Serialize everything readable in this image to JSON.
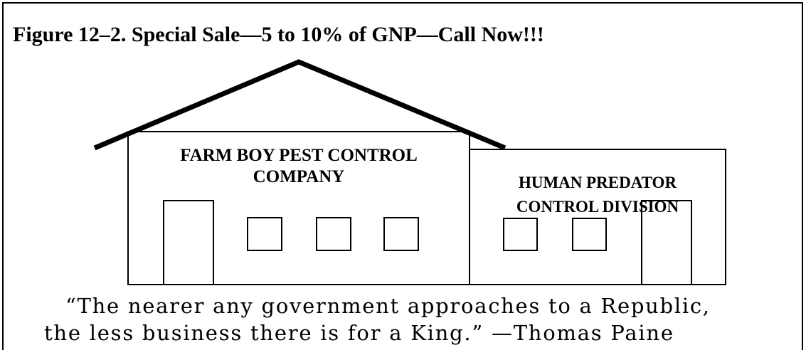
{
  "title": "Figure 12–2. Special Sale—5 to 10% of GNP—Call Now!!!",
  "buildings": [
    {
      "label_lines": [
        "FARM BOY PEST CONTROL",
        "COMPANY"
      ]
    },
    {
      "label_lines": [
        "HUMAN PREDATOR",
        "CONTROL DIVISION"
      ]
    }
  ],
  "quote_lines": [
    "“The nearer any government approaches to a Republic,",
    "the less business there is for a King.” —Thomas Paine"
  ]
}
